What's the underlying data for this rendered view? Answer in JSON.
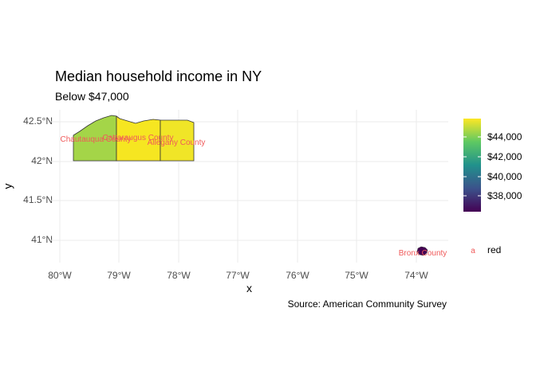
{
  "header": {
    "title": "Median household income in NY",
    "subtitle": "Below $47,000",
    "caption": "Source: American Community Survey"
  },
  "axes": {
    "xlabel": "x",
    "ylabel": "y",
    "x_ticks": [
      "80°W",
      "79°W",
      "78°W",
      "77°W",
      "76°W",
      "75°W",
      "74°W"
    ],
    "y_ticks": [
      "42.5°N",
      "42°N",
      "41.5°N",
      "41°N"
    ]
  },
  "legend": {
    "colorbar_labels": [
      "$44,000",
      "$42,000",
      "$40,000",
      "$38,000"
    ],
    "key_glyph": "a",
    "key_label": "red"
  },
  "counties": [
    {
      "name": "Chautauqua County",
      "fill": "#a4d548"
    },
    {
      "name": "Cattaraugus County",
      "fill": "#f6e621"
    },
    {
      "name": "Allegany County",
      "fill": "#f0e527"
    },
    {
      "name": "Bronx County",
      "fill": "#440154"
    }
  ],
  "colors": {
    "label": "#f05a5a",
    "grid": "#ebebeb",
    "border": "#333333"
  }
}
